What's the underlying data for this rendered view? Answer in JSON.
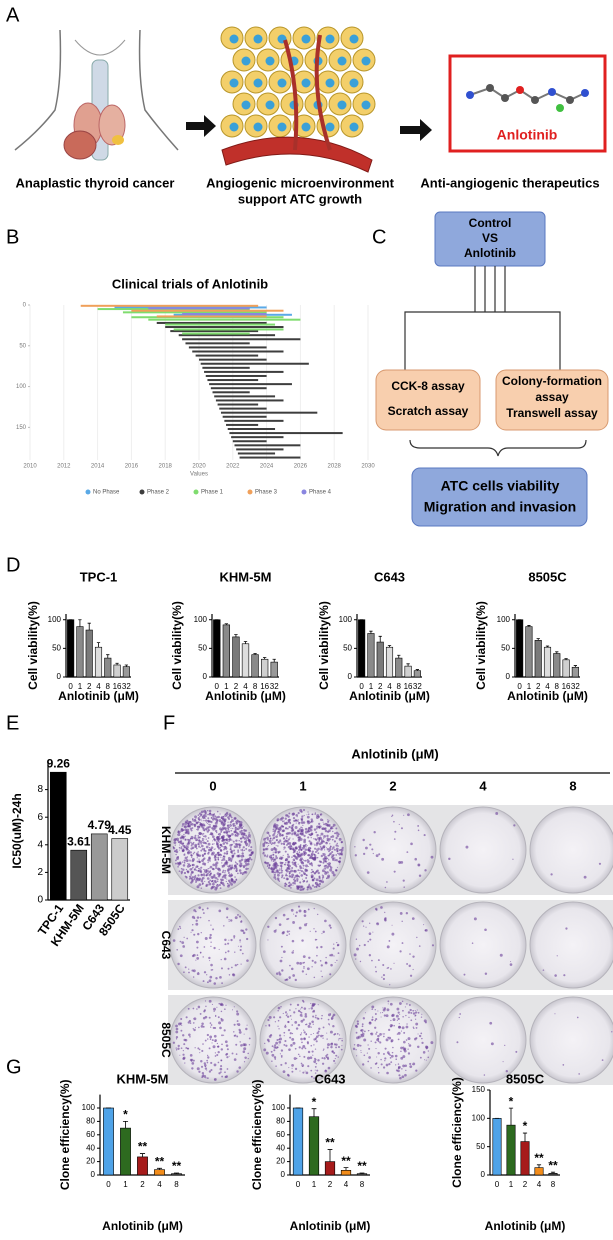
{
  "panel_labels": [
    "A",
    "B",
    "C",
    "D",
    "E",
    "F",
    "G"
  ],
  "panel_a": {
    "captions": [
      "Anaplastic thyroid cancer",
      "Angiogenic microenvironment",
      "support ATC growth",
      "Anti-angiogenic therapeutics"
    ],
    "drug_label": "Anlotinib"
  },
  "panel_c": {
    "top": [
      "Control",
      "VS",
      "Anlotinib"
    ],
    "left": [
      "CCK-8 assay",
      "Scratch assay"
    ],
    "right": [
      "Colony-formation",
      "assay",
      "Transwell assay"
    ],
    "bottom": [
      "ATC cells viability",
      "Migration and invasion"
    ]
  },
  "panel_f": {
    "title": "Anlotinib (μM)",
    "columns": [
      "0",
      "1",
      "2",
      "4",
      "8"
    ],
    "rows": [
      "KHM-5M",
      "C643",
      "8505C"
    ]
  },
  "chart_data": [
    {
      "type": "range-bar",
      "title": "Clinical trials of Anlotinib",
      "xlabel": "Values",
      "xlim": [
        2010,
        2030
      ],
      "xticks": [
        2010,
        2012,
        2014,
        2016,
        2018,
        2020,
        2022,
        2024,
        2026,
        2028,
        2030
      ],
      "ylim": [
        190,
        0
      ],
      "yticks": [
        0,
        50,
        100,
        150
      ],
      "grid": true,
      "series": [
        {
          "name": "No Phase",
          "color": "#5aa9e6",
          "rows": [
            3,
            12
          ],
          "starts": [
            2015,
            2018.5
          ],
          "ends": [
            2024,
            2025.5
          ]
        },
        {
          "name": "Phase 2",
          "color": "#3d3d3d",
          "rows": [
            22,
            27,
            32,
            37,
            42,
            47,
            52,
            57,
            62,
            67,
            72,
            77,
            82,
            87,
            92,
            97,
            102,
            107,
            112,
            117,
            122,
            127,
            132,
            137,
            142,
            147,
            152,
            157,
            162,
            167,
            172,
            177,
            182,
            187
          ],
          "starts": [
            2017.5,
            2018,
            2018.3,
            2018.8,
            2019,
            2019.2,
            2019.4,
            2019.6,
            2019.8,
            2020,
            2020.1,
            2020.2,
            2020.3,
            2020.4,
            2020.5,
            2020.6,
            2020.7,
            2020.8,
            2020.9,
            2021,
            2021.1,
            2021.2,
            2021.3,
            2021.4,
            2021.5,
            2021.6,
            2021.7,
            2021.8,
            2021.9,
            2022,
            2022.1,
            2022.2,
            2022.3,
            2022.4
          ],
          "ends": [
            2024,
            2025,
            2023.5,
            2024.5,
            2026,
            2023,
            2024,
            2025,
            2023.5,
            2024,
            2026.5,
            2023,
            2025,
            2024,
            2023.5,
            2025.5,
            2024,
            2023,
            2024.5,
            2025,
            2023.5,
            2024,
            2027,
            2024,
            2025,
            2023.5,
            2024.5,
            2028.5,
            2025,
            2024,
            2026,
            2025,
            2024.5,
            2026
          ]
        },
        {
          "name": "Phase 1",
          "color": "#7fdc6e",
          "rows": [
            5,
            9,
            15,
            18,
            24,
            30,
            35
          ],
          "starts": [
            2014,
            2015.5,
            2016,
            2017,
            2018,
            2018.5,
            2019
          ],
          "ends": [
            2023,
            2024,
            2025,
            2026,
            2024.5,
            2025,
            2023
          ]
        },
        {
          "name": "Phase 3",
          "color": "#f0a05a",
          "rows": [
            1,
            7,
            14
          ],
          "starts": [
            2013,
            2016,
            2017.5
          ],
          "ends": [
            2023.5,
            2025,
            2024
          ]
        },
        {
          "name": "Phase 4",
          "color": "#8a86e0",
          "rows": [
            4,
            11
          ],
          "starts": [
            2017,
            2019
          ],
          "ends": [
            2023,
            2024
          ]
        }
      ]
    },
    {
      "type": "bar",
      "title": "TPC-1",
      "ylabel": "Cell viability(%)",
      "xlabel": "Anlotinib (μM)",
      "categories": [
        "0",
        "1",
        "2",
        "4",
        "8",
        "16",
        "32"
      ],
      "values": [
        100,
        88,
        82,
        52,
        33,
        21,
        18
      ],
      "errors": [
        0,
        12,
        12,
        8,
        6,
        3,
        3
      ],
      "colors": [
        "#000000",
        "#8a8a8a",
        "#7a7a7a",
        "#dddddd",
        "#8a8a8a",
        "#d0d0d0",
        "#999999"
      ],
      "ylim": [
        0,
        110
      ],
      "yticks": [
        0,
        50,
        100
      ]
    },
    {
      "type": "bar",
      "title": "KHM-5M",
      "ylabel": "Cell viability(%)",
      "xlabel": "Anlotinib (μM)",
      "categories": [
        "0",
        "1",
        "2",
        "4",
        "8",
        "16",
        "32"
      ],
      "values": [
        100,
        91,
        70,
        58,
        39,
        31,
        26
      ],
      "errors": [
        0,
        2,
        4,
        4,
        2,
        3,
        5
      ],
      "colors": [
        "#000000",
        "#8a8a8a",
        "#7a7a7a",
        "#dddddd",
        "#8a8a8a",
        "#d0d0d0",
        "#999999"
      ],
      "ylim": [
        0,
        110
      ],
      "yticks": [
        0,
        50,
        100
      ]
    },
    {
      "type": "bar",
      "title": "C643",
      "ylabel": "Cell viability(%)",
      "xlabel": "Anlotinib (μM)",
      "categories": [
        "0",
        "1",
        "2",
        "4",
        "8",
        "16",
        "32"
      ],
      "values": [
        100,
        76,
        61,
        52,
        33,
        19,
        11
      ],
      "errors": [
        0,
        4,
        10,
        3,
        5,
        4,
        2
      ],
      "colors": [
        "#000000",
        "#8a8a8a",
        "#7a7a7a",
        "#dddddd",
        "#8a8a8a",
        "#d0d0d0",
        "#999999"
      ],
      "ylim": [
        0,
        110
      ],
      "yticks": [
        0,
        50,
        100
      ]
    },
    {
      "type": "bar",
      "title": "8505C",
      "ylabel": "Cell viability(%)",
      "xlabel": "Anlotinib (μM)",
      "categories": [
        "0",
        "1",
        "2",
        "4",
        "8",
        "16",
        "32"
      ],
      "values": [
        100,
        88,
        64,
        52,
        41,
        30,
        17
      ],
      "errors": [
        0,
        2,
        3,
        2,
        3,
        2,
        3
      ],
      "colors": [
        "#000000",
        "#8a8a8a",
        "#7a7a7a",
        "#dddddd",
        "#8a8a8a",
        "#d0d0d0",
        "#999999"
      ],
      "ylim": [
        0,
        110
      ],
      "yticks": [
        0,
        50,
        100
      ]
    },
    {
      "type": "bar",
      "ylabel": "IC50(uM)-24h",
      "categories": [
        "TPC-1",
        "KHM-5M",
        "C643",
        "8505C"
      ],
      "values": [
        9.26,
        3.61,
        4.79,
        4.45
      ],
      "colors": [
        "#000000",
        "#555555",
        "#999999",
        "#cccccc"
      ],
      "ylim": [
        0,
        10
      ],
      "yticks": [
        0,
        2,
        4,
        6,
        8
      ],
      "data_labels": true
    },
    {
      "type": "bar",
      "title": "KHM-5M",
      "ylabel": "Clone efficiency(%)",
      "xlabel": "Anlotinib (μM)",
      "categories": [
        "0",
        "1",
        "2",
        "4",
        "8"
      ],
      "values": [
        100,
        70,
        27,
        8,
        2
      ],
      "errors": [
        0,
        10,
        5,
        2,
        1
      ],
      "significance": [
        null,
        "*",
        "**",
        "**",
        "**"
      ],
      "colors": [
        "#4fa3e8",
        "#2d6a1f",
        "#a61b1b",
        "#f28c1a",
        "#555555"
      ],
      "ylim": [
        0,
        120
      ],
      "yticks": [
        0,
        20,
        40,
        60,
        80,
        100
      ]
    },
    {
      "type": "bar",
      "title": "C643",
      "ylabel": "Clone efficiency(%)",
      "xlabel": "Anlotinib (μM)",
      "categories": [
        "0",
        "1",
        "2",
        "4",
        "8"
      ],
      "values": [
        100,
        87,
        20,
        7,
        2
      ],
      "errors": [
        0,
        12,
        18,
        4,
        1
      ],
      "significance": [
        null,
        "*",
        "**",
        "**",
        "**"
      ],
      "colors": [
        "#4fa3e8",
        "#2d6a1f",
        "#a61b1b",
        "#f28c1a",
        "#555555"
      ],
      "ylim": [
        0,
        120
      ],
      "yticks": [
        0,
        20,
        40,
        60,
        80,
        100
      ]
    },
    {
      "type": "bar",
      "title": "8505C",
      "ylabel": "Clone efficiency(%)",
      "xlabel": "Anlotinib (μM)",
      "categories": [
        "0",
        "1",
        "2",
        "4",
        "8"
      ],
      "values": [
        100,
        88,
        59,
        13,
        3
      ],
      "errors": [
        0,
        30,
        15,
        5,
        2
      ],
      "significance": [
        null,
        "*",
        "*",
        "**",
        "**"
      ],
      "colors": [
        "#4fa3e8",
        "#2d6a1f",
        "#a61b1b",
        "#f28c1a",
        "#555555"
      ],
      "ylim": [
        0,
        150
      ],
      "yticks": [
        0,
        50,
        100,
        150
      ]
    }
  ]
}
